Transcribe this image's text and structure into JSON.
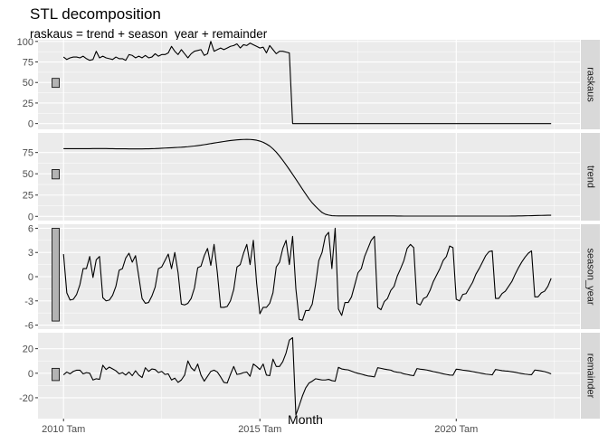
{
  "chart_data": {
    "type": "line",
    "title": "STL decomposition",
    "subtitle": "raskaus = trend + season_year + remainder",
    "xlabel": "Month",
    "x_ticks": [
      "2010 Tam",
      "2015 Tam",
      "2020 Tam"
    ],
    "x_tick_values": [
      2010,
      2015,
      2020
    ],
    "xlim": [
      2009.35,
      2023.15
    ],
    "x_start": 2010.0,
    "x_step": 0.0833333,
    "colors": {
      "panel_bg": "#ebebeb",
      "grid_major": "#ffffff",
      "strip_bg": "#d9d9d9",
      "line": "#000000",
      "range_bar": "#b3b3b3"
    },
    "range_bar_x": 2009.8,
    "panels": [
      {
        "name": "raskaus",
        "ylim": [
          -7,
          102
        ],
        "y_ticks": [
          0,
          25,
          50,
          75,
          100
        ],
        "range_bar": [
          44,
          55
        ],
        "values": [
          81,
          78,
          80,
          81,
          81,
          80,
          82,
          79,
          77,
          78,
          88,
          80,
          82,
          80,
          79,
          78,
          81,
          79,
          79,
          77,
          84,
          83,
          80,
          82,
          80,
          83,
          80,
          81,
          85,
          82,
          84,
          84,
          86,
          94,
          88,
          84,
          90,
          85,
          80,
          85,
          88,
          89,
          90,
          83,
          85,
          100,
          88,
          90,
          92,
          90,
          92,
          94,
          95,
          97,
          92,
          96,
          95,
          98,
          96,
          94,
          92,
          93,
          86,
          95,
          90,
          85,
          88,
          88,
          87,
          86,
          0,
          0,
          0,
          0,
          0,
          0,
          0,
          0,
          0,
          0,
          0,
          0,
          0,
          0,
          0,
          0,
          0,
          0,
          0,
          0,
          0,
          0,
          0,
          0,
          0,
          0,
          0,
          0,
          0,
          0,
          0,
          0,
          0,
          0,
          0,
          0,
          0,
          0,
          0,
          0,
          0,
          0,
          0,
          0,
          0,
          0,
          0,
          0,
          0,
          0,
          0,
          0,
          0,
          0,
          0,
          0,
          0,
          0,
          0,
          0,
          0,
          0,
          0,
          0,
          0,
          0,
          0,
          0,
          0,
          0,
          0,
          0,
          0,
          0,
          0,
          0,
          0,
          0,
          0,
          0
        ]
      },
      {
        "name": "trend",
        "ylim": [
          -5,
          98
        ],
        "y_ticks": [
          0,
          25,
          50,
          75
        ],
        "range_bar": [
          44,
          55
        ],
        "values": [
          79.5,
          79.5,
          79.5,
          79.5,
          79.5,
          79.5,
          79.5,
          79.5,
          79.5,
          79.6,
          79.6,
          79.6,
          79.6,
          79.6,
          79.5,
          79.5,
          79.4,
          79.4,
          79.3,
          79.3,
          79.2,
          79.2,
          79.2,
          79.2,
          79.2,
          79.3,
          79.4,
          79.5,
          79.6,
          79.8,
          80.0,
          80.2,
          80.4,
          80.6,
          80.8,
          81.0,
          81.2,
          81.5,
          81.8,
          82.2,
          82.6,
          83.1,
          83.6,
          84.2,
          84.8,
          85.5,
          86.1,
          86.7,
          87.3,
          87.9,
          88.5,
          89.0,
          89.4,
          89.8,
          90.1,
          90.3,
          90.4,
          90.3,
          90.0,
          89.4,
          88.4,
          87.0,
          85.0,
          82.6,
          79.3,
          75.4,
          70.8,
          65.8,
          60.5,
          55.0,
          49.3,
          43.6,
          37.8,
          32.0,
          26.3,
          20.7,
          15.8,
          11.7,
          8.0,
          4.5,
          2.5,
          1.5,
          0.8,
          0.6,
          0.5,
          0.5,
          0.5,
          0.5,
          0.5,
          0.5,
          0.5,
          0.5,
          0.5,
          0.5,
          0.5,
          0.5,
          0.5,
          0.5,
          0.5,
          0.5,
          0.5,
          0.5,
          0.4,
          0.4,
          0.3,
          0.3,
          0.3,
          0.3,
          0.3,
          0.3,
          0.3,
          0.3,
          0.3,
          0.3,
          0.3,
          0.3,
          0.3,
          0.3,
          0.3,
          0.3,
          0.3,
          0.3,
          0.3,
          0.3,
          0.3,
          0.3,
          0.3,
          0.3,
          0.3,
          0.3,
          0.3,
          0.3,
          0.3,
          0.3,
          0.3,
          0.3,
          0.3,
          0.4,
          0.4,
          0.5,
          0.5,
          0.6,
          0.7,
          0.8,
          0.9,
          1.0,
          1.1,
          1.2,
          1.3,
          1.3
        ]
      },
      {
        "name": "season_year",
        "ylim": [
          -6.5,
          6.5
        ],
        "y_ticks": [
          -6,
          -3,
          0,
          3,
          6
        ],
        "range_bar": [
          -5.5,
          6.0
        ],
        "values": [
          2.8,
          -2.0,
          -2.9,
          -2.8,
          -2.2,
          -1.0,
          1.0,
          1.0,
          2.5,
          -0.1,
          2.1,
          2.5,
          -2.6,
          -3.0,
          -2.9,
          -2.3,
          -1.2,
          0.8,
          1.0,
          2.3,
          2.9,
          1.8,
          2.6,
          0.0,
          -2.7,
          -3.3,
          -3.2,
          -2.4,
          -1.3,
          1.0,
          1.2,
          2.0,
          2.8,
          1.0,
          3.0,
          0.5,
          -3.4,
          -3.5,
          -3.3,
          -2.7,
          -1.4,
          1.1,
          1.3,
          2.6,
          3.5,
          1.4,
          4.0,
          0.5,
          -3.8,
          -3.8,
          -3.7,
          -3.0,
          -1.6,
          1.2,
          1.5,
          2.9,
          4.0,
          1.5,
          4.5,
          -0.8,
          -4.6,
          -3.8,
          -3.8,
          -3.3,
          -2.0,
          1.2,
          1.8,
          3.5,
          4.5,
          1.5,
          5.0,
          -1.5,
          -5.3,
          -5.4,
          -4.2,
          -4.2,
          -3.4,
          -1.0,
          2.0,
          3.0,
          5.0,
          5.5,
          1.0,
          6.0,
          -4.0,
          -4.8,
          -3.2,
          -3.2,
          -2.5,
          -1.0,
          0.5,
          1.0,
          2.5,
          3.5,
          4.5,
          5.0,
          -3.8,
          -4.1,
          -3.1,
          -2.7,
          -1.7,
          -1.2,
          0.1,
          1.0,
          2.0,
          3.5,
          4.0,
          3.6,
          -3.3,
          -3.5,
          -2.7,
          -2.5,
          -1.7,
          -0.6,
          0.2,
          1.0,
          2.0,
          2.5,
          3.8,
          3.6,
          -2.8,
          -3.0,
          -2.2,
          -2.1,
          -1.4,
          -0.7,
          0.3,
          1.0,
          1.8,
          2.6,
          3.1,
          3.2,
          -2.7,
          -2.7,
          -2.1,
          -1.8,
          -1.2,
          -0.6,
          0.3,
          1.1,
          1.8,
          2.4,
          2.9,
          3.2,
          -2.5,
          -2.5,
          -2.0,
          -1.8,
          -1.2,
          -0.2
        ]
      },
      {
        "name": "remainder",
        "ylim": [
          -37,
          33
        ],
        "y_ticks": [
          -20,
          0,
          20
        ],
        "range_bar": [
          -6,
          4
        ],
        "values": [
          -1.3,
          1.0,
          -0.5,
          1.5,
          2.5,
          2.5,
          -0.5,
          0.5,
          0.0,
          -5.5,
          -4.5,
          -5.0,
          6.5,
          3.0,
          5.0,
          3.5,
          2.0,
          -0.5,
          0.5,
          -1.5,
          1.0,
          -2.0,
          2.0,
          -1.5,
          -3.5,
          4.5,
          1.5,
          3.5,
          3.0,
          0.5,
          1.5,
          -1.0,
          -0.5,
          -5.5,
          -4.0,
          -7.5,
          -5.5,
          -1.5,
          10.0,
          4.5,
          2.0,
          7.5,
          -1.5,
          -6.5,
          -2.5,
          1.5,
          2.5,
          1.0,
          -3.0,
          -7.5,
          -8.0,
          -1.0,
          5.5,
          -1.0,
          -0.5,
          0.5,
          1.0,
          -2.5,
          7.5,
          5.5,
          3.0,
          7.5,
          -1.5,
          -2.0,
          11.5,
          5.5,
          5.5,
          9.5,
          16.5,
          27.0,
          29.0,
          -34.0,
          -26.5,
          -18.5,
          -12.0,
          -8.0,
          -6.5,
          -4.5,
          -5.0,
          -5.5,
          -5.5,
          -5.0,
          -6.0,
          -6.5,
          4.8,
          3.5,
          3.0,
          2.7,
          1.7,
          0.7,
          -0.1,
          -0.7,
          -1.5,
          -2.2,
          -2.5,
          -3.0,
          4.5,
          4.0,
          3.4,
          2.9,
          2.5,
          1.3,
          0.8,
          0.5,
          -0.5,
          -1.0,
          -1.6,
          -2.0,
          3.8,
          3.3,
          3.0,
          2.6,
          2.0,
          1.3,
          0.8,
          0.2,
          -0.5,
          -1.0,
          -1.5,
          -1.6,
          3.3,
          3.0,
          2.5,
          2.2,
          1.8,
          1.3,
          0.8,
          0.3,
          -0.2,
          -0.7,
          -1.0,
          -1.3,
          3.0,
          2.6,
          2.1,
          1.8,
          1.6,
          1.2,
          0.8,
          0.2,
          -0.3,
          -0.7,
          -1.0,
          -1.2,
          2.6,
          2.3,
          1.8,
          1.3,
          0.5,
          -0.5
        ]
      }
    ]
  }
}
